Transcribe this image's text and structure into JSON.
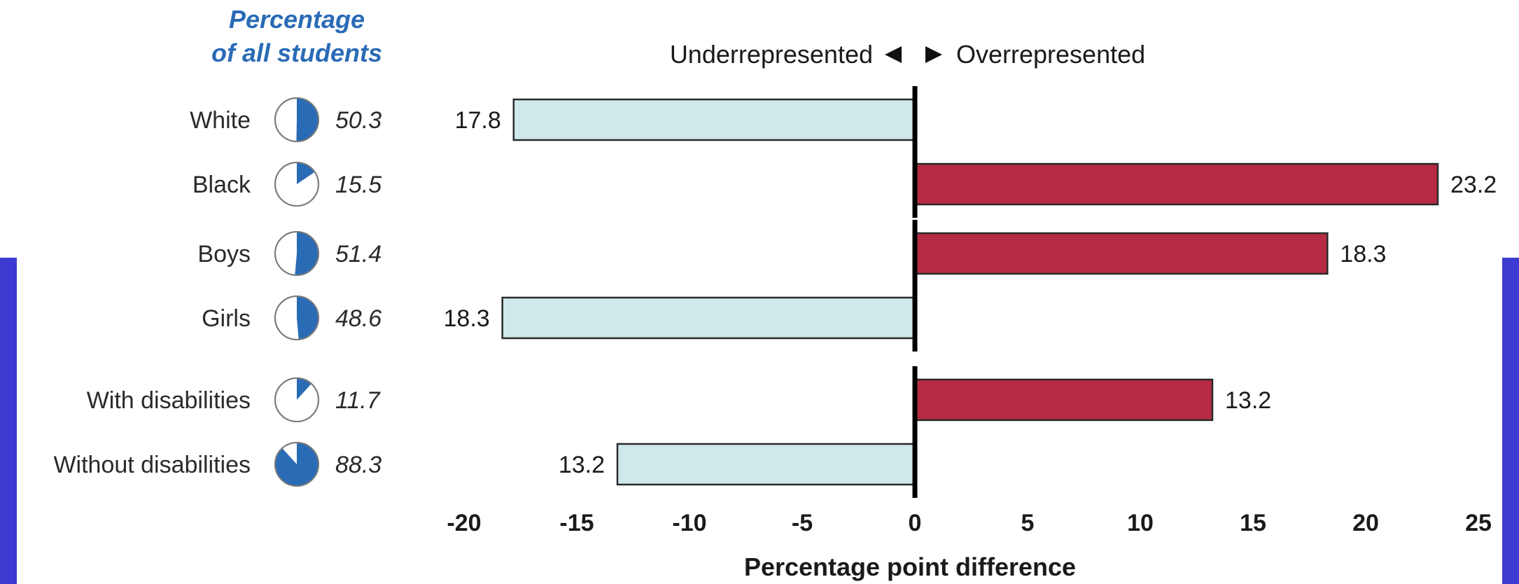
{
  "chart_data": {
    "type": "bar",
    "orientation": "horizontal",
    "pie_column_header": [
      "Percentage",
      "of all students"
    ],
    "direction_labels": {
      "left": "Underrepresented",
      "right": "Overrepresented"
    },
    "xlabel": "Percentage point difference",
    "xlim": [
      -20,
      25
    ],
    "xticks": [
      -20,
      -15,
      -10,
      -5,
      0,
      5,
      10,
      15,
      20,
      25
    ],
    "grid": false,
    "colors": {
      "under": "#cfe9ea",
      "over": "#b62b43",
      "pie": "#2a6bb6",
      "header": "#2a6bb6"
    },
    "rows": [
      {
        "label": "White",
        "percent_of_students": 50.3,
        "percent_text": "50.3",
        "value": -17.8,
        "value_label": "17.8"
      },
      {
        "label": "Black",
        "percent_of_students": 15.5,
        "percent_text": "15.5",
        "value": 23.2,
        "value_label": "23.2"
      },
      {
        "label": "Boys",
        "percent_of_students": 51.4,
        "percent_text": "51.4",
        "value": 18.3,
        "value_label": "18.3"
      },
      {
        "label": "Girls",
        "percent_of_students": 48.6,
        "percent_text": "48.6",
        "value": -18.3,
        "value_label": "18.3"
      },
      {
        "label": "With disabilities",
        "percent_of_students": 11.7,
        "percent_text": "11.7",
        "value": 13.2,
        "value_label": "13.2"
      },
      {
        "label": "Without disabilities",
        "percent_of_students": 88.3,
        "percent_text": "88.3",
        "value": -13.2,
        "value_label": "13.2"
      }
    ]
  }
}
